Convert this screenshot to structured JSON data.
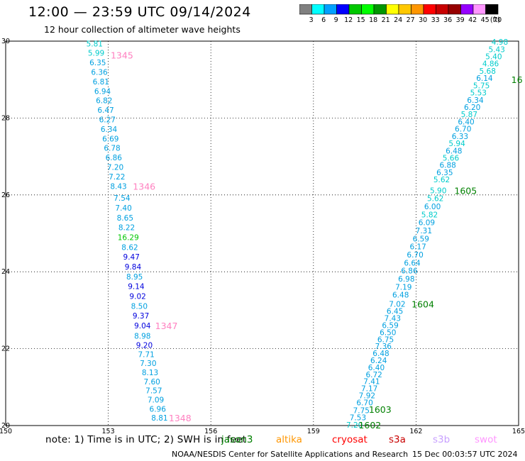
{
  "header": {
    "title": "12:00 — 23:59 UTC 09/14/2024",
    "subtitle": "12 hour collection of altimeter wave heights"
  },
  "colorbar": {
    "labels": [
      "3",
      "6",
      "9",
      "12",
      "15",
      "18",
      "21",
      "24",
      "27",
      "30",
      "33",
      "36",
      "39",
      "42",
      "45",
      "70"
    ],
    "unit": "(ft)",
    "colors": [
      "#808080",
      "#00ffff",
      "#00a0ff",
      "#0000ff",
      "#00c800",
      "#00ff00",
      "#009600",
      "#ffff00",
      "#ffc800",
      "#ff9600",
      "#ff0000",
      "#c80000",
      "#960000",
      "#9600ff",
      "#ff96ff",
      "#000000"
    ]
  },
  "axes": {
    "x_ticks": [
      150,
      153,
      156,
      159,
      162,
      165
    ],
    "y_ticks": [
      20,
      22,
      24,
      26,
      28,
      30
    ],
    "x_range": [
      150,
      165
    ],
    "y_range": [
      20,
      30
    ]
  },
  "tracks": [
    {
      "label": "1345",
      "label_lon": 153.4,
      "label_lat": 29.64,
      "label_color": "#ff80c0",
      "points": [
        {
          "v": "5.81",
          "c": "#00cccc"
        },
        {
          "v": "5.99",
          "c": "#00cccc"
        },
        {
          "v": "6.35",
          "c": "#00a0e0"
        },
        {
          "v": "6.36",
          "c": "#00a0e0"
        },
        {
          "v": "6.81",
          "c": "#00a0e0"
        },
        {
          "v": "6.94",
          "c": "#00a0e0"
        },
        {
          "v": "6.82",
          "c": "#00a0e0"
        },
        {
          "v": "6.47",
          "c": "#00a0e0"
        },
        {
          "v": "6.27",
          "c": "#00a0e0"
        },
        {
          "v": "6.34",
          "c": "#00a0e0"
        },
        {
          "v": "6.69",
          "c": "#00a0e0"
        },
        {
          "v": "6.78",
          "c": "#00a0e0"
        },
        {
          "v": "6.86",
          "c": "#00a0e0"
        },
        {
          "v": "7.20",
          "c": "#00a0e0"
        },
        {
          "v": "7.22",
          "c": "#00a0e0"
        },
        {
          "v": "8.43",
          "c": "#00a0e0"
        }
      ],
      "start_lon": 152.6,
      "start_lat": 29.94,
      "end_lon": 153.3,
      "end_lat": 26.23
    },
    {
      "label": "1346",
      "label_lon": 154.05,
      "label_lat": 26.23,
      "label_color": "#ff80c0",
      "points": [
        {
          "v": "7.54",
          "c": "#00a0e0"
        },
        {
          "v": "7.40",
          "c": "#00a0e0"
        },
        {
          "v": "8.65",
          "c": "#00a0e0"
        },
        {
          "v": "8.22",
          "c": "#00a0e0"
        },
        {
          "v": "16.29",
          "c": "#00c800"
        },
        {
          "v": "8.62",
          "c": "#00a0e0"
        },
        {
          "v": "9.47",
          "c": "#0000dd"
        },
        {
          "v": "9.84",
          "c": "#0000dd"
        },
        {
          "v": "8.95",
          "c": "#00a0e0"
        },
        {
          "v": "9.14",
          "c": "#0000dd"
        },
        {
          "v": "9.02",
          "c": "#0000dd"
        },
        {
          "v": "8.50",
          "c": "#00a0e0"
        },
        {
          "v": "9.37",
          "c": "#0000dd"
        },
        {
          "v": "9.04",
          "c": "#0000dd"
        }
      ],
      "start_lon": 153.4,
      "start_lat": 25.92,
      "end_lon": 154.0,
      "end_lat": 22.6
    },
    {
      "label": "1347",
      "label_lon": 154.7,
      "label_lat": 22.6,
      "label_color": "#ff80c0",
      "points": [
        {
          "v": "8.98",
          "c": "#00a0e0"
        },
        {
          "v": "9.20",
          "c": "#0000dd"
        },
        {
          "v": "7.71",
          "c": "#00a0e0"
        },
        {
          "v": "7.30",
          "c": "#00a0e0"
        },
        {
          "v": "8.13",
          "c": "#00a0e0"
        },
        {
          "v": "7.60",
          "c": "#00a0e0"
        },
        {
          "v": "7.57",
          "c": "#00a0e0"
        },
        {
          "v": "7.09",
          "c": "#00a0e0"
        },
        {
          "v": "6.96",
          "c": "#00a0e0"
        },
        {
          "v": "8.81",
          "c": "#00a0e0"
        }
      ],
      "start_lon": 154.0,
      "start_lat": 22.33,
      "end_lon": 154.5,
      "end_lat": 20.2
    },
    {
      "label": "1348",
      "label_lon": 155.1,
      "label_lat": 20.2,
      "label_color": "#ff80c0",
      "points": []
    },
    {
      "label": "1602",
      "label_lon": 160.65,
      "label_lat": 20.02,
      "label_color": "#008000",
      "points": [
        {
          "v": "7.20",
          "c": "#00cccc"
        },
        {
          "v": "7.53",
          "c": "#00a0e0"
        },
        {
          "v": "7.75",
          "c": "#00a0e0"
        }
      ],
      "start_lon": 160.2,
      "start_lat": 20.02,
      "end_lon": 160.4,
      "end_lat": 20.4
    },
    {
      "label": "1603",
      "label_lon": 160.95,
      "label_lat": 20.42,
      "label_color": "#008000",
      "points": [
        {
          "v": "6.70",
          "c": "#00a0e0"
        },
        {
          "v": "7.92",
          "c": "#00a0e0"
        },
        {
          "v": "7.17",
          "c": "#00a0e0"
        },
        {
          "v": "7.41",
          "c": "#00a0e0"
        },
        {
          "v": "6.72",
          "c": "#00a0e0"
        },
        {
          "v": "6.40",
          "c": "#00a0e0"
        },
        {
          "v": "6.24",
          "c": "#00a0e0"
        },
        {
          "v": "6.48",
          "c": "#00a0e0"
        },
        {
          "v": "7.36",
          "c": "#00a0e0"
        },
        {
          "v": "6.75",
          "c": "#00a0e0"
        },
        {
          "v": "6.50",
          "c": "#00a0e0"
        },
        {
          "v": "6.59",
          "c": "#00a0e0"
        },
        {
          "v": "7.43",
          "c": "#00a0e0"
        },
        {
          "v": "6.45",
          "c": "#00a0e0"
        },
        {
          "v": "7.02",
          "c": "#00a0e0"
        }
      ],
      "start_lon": 160.5,
      "start_lat": 20.6,
      "end_lon": 161.45,
      "end_lat": 23.16
    },
    {
      "label": "1604",
      "label_lon": 162.2,
      "label_lat": 23.16,
      "label_color": "#008000",
      "points": [
        {
          "v": "6.48",
          "c": "#00a0e0"
        },
        {
          "v": "7.19",
          "c": "#00a0e0"
        },
        {
          "v": "6.98",
          "c": "#00a0e0"
        },
        {
          "v": "6.86",
          "c": "#00a0e0"
        },
        {
          "v": "6.64",
          "c": "#00a0e0"
        },
        {
          "v": "6.70",
          "c": "#00a0e0"
        },
        {
          "v": "6.17",
          "c": "#00a0e0"
        },
        {
          "v": "6.59",
          "c": "#00a0e0"
        },
        {
          "v": "7.31",
          "c": "#00a0e0"
        },
        {
          "v": "6.09",
          "c": "#00a0e0"
        },
        {
          "v": "5.82",
          "c": "#00cccc"
        },
        {
          "v": "6.00",
          "c": "#00a0e0"
        },
        {
          "v": "5.62",
          "c": "#00cccc"
        },
        {
          "v": "5.90",
          "c": "#00cccc"
        }
      ],
      "start_lon": 161.55,
      "start_lat": 23.4,
      "end_lon": 162.65,
      "end_lat": 26.12
    },
    {
      "label": "1605",
      "label_lon": 163.45,
      "label_lat": 26.12,
      "label_color": "#008000",
      "points": [
        {
          "v": "5.62",
          "c": "#00cccc"
        },
        {
          "v": "6.35",
          "c": "#00a0e0"
        },
        {
          "v": "6.88",
          "c": "#00a0e0"
        },
        {
          "v": "5.66",
          "c": "#00cccc"
        },
        {
          "v": "6.48",
          "c": "#00a0e0"
        },
        {
          "v": "5.94",
          "c": "#00cccc"
        },
        {
          "v": "6.33",
          "c": "#00a0e0"
        },
        {
          "v": "6.70",
          "c": "#00a0e0"
        },
        {
          "v": "6.40",
          "c": "#00a0e0"
        },
        {
          "v": "5.87",
          "c": "#00cccc"
        },
        {
          "v": "6.20",
          "c": "#00a0e0"
        },
        {
          "v": "6.34",
          "c": "#00a0e0"
        },
        {
          "v": "5.53",
          "c": "#00cccc"
        },
        {
          "v": "5.75",
          "c": "#00cccc"
        },
        {
          "v": "6.14",
          "c": "#00a0e0"
        },
        {
          "v": "5.68",
          "c": "#00cccc"
        },
        {
          "v": "4.86",
          "c": "#00cccc"
        },
        {
          "v": "5.40",
          "c": "#00cccc"
        },
        {
          "v": "5.43",
          "c": "#00cccc"
        },
        {
          "v": "4.98",
          "c": "#00cccc"
        }
      ],
      "start_lon": 162.75,
      "start_lat": 26.4,
      "end_lon": 164.45,
      "end_lat": 29.98
    },
    {
      "label": "16",
      "label_lon": 164.95,
      "label_lat": 29.0,
      "label_color": "#008000",
      "points": []
    }
  ],
  "footer": {
    "note": "note:  1) Time is in UTC;  2) SWH is in feet",
    "satellites": [
      {
        "name": "jason3",
        "color": "#008000"
      },
      {
        "name": "altika",
        "color": "#ff9600"
      },
      {
        "name": "cryosat",
        "color": "#ff0000"
      },
      {
        "name": "s3a",
        "color": "#c80000"
      },
      {
        "name": "s3b",
        "color": "#c8a0ff"
      },
      {
        "name": "swot",
        "color": "#ff96ff"
      }
    ],
    "credit": "NOAA/NESDIS Center for Satellite Applications and Research",
    "timestamp": "15 Dec 00:03:57 UTC 2024"
  }
}
